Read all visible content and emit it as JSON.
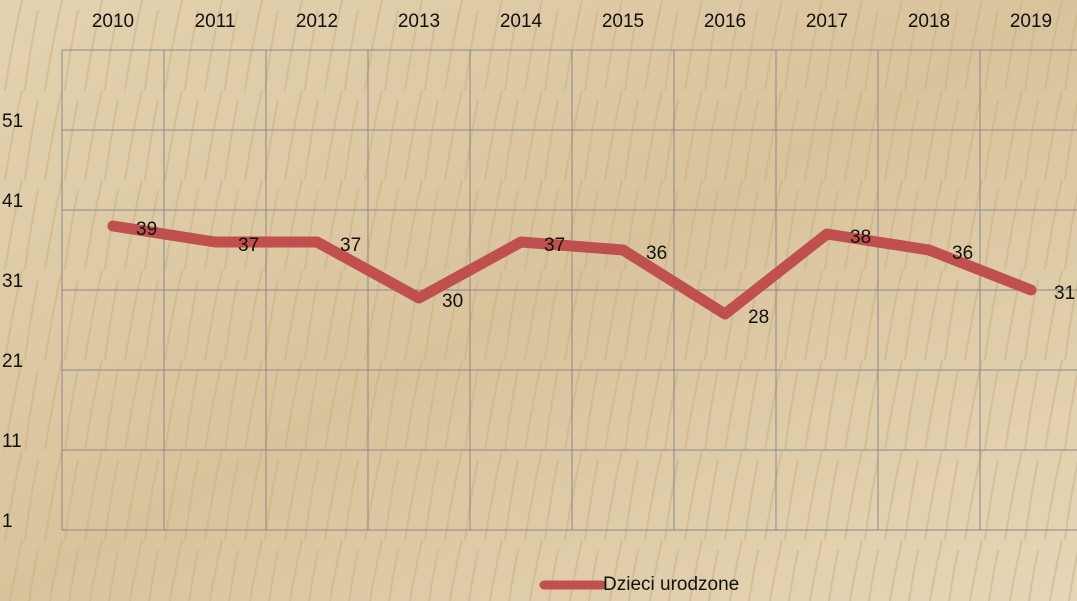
{
  "chart_data": {
    "type": "line",
    "categories": [
      "2010",
      "2011",
      "2012",
      "2013",
      "2014",
      "2015",
      "2016",
      "2017",
      "2018",
      "2019"
    ],
    "series": [
      {
        "name": "Dzieci urodzone",
        "color": "#c0504d",
        "values": [
          39,
          37,
          37,
          30,
          37,
          36,
          28,
          38,
          36,
          31
        ]
      }
    ],
    "ylim": [
      1,
      61
    ],
    "yticks": [
      1,
      11,
      21,
      31,
      41,
      51
    ],
    "grid": true,
    "legend": "bottom"
  }
}
